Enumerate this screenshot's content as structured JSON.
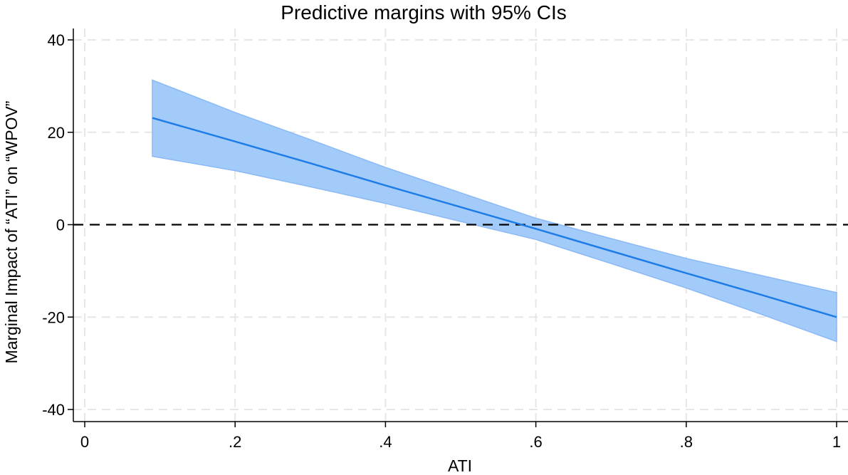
{
  "chart_data": {
    "type": "line",
    "title": "Predictive margins with 95% CIs",
    "xlabel": "ATI",
    "ylabel": "Marginal Impact of “ATI” on “WPOV”",
    "xlim": [
      0,
      1
    ],
    "ylim": [
      -40,
      40
    ],
    "x_ticks": [
      {
        "value": 0,
        "label": "0"
      },
      {
        "value": 0.2,
        "label": ".2"
      },
      {
        "value": 0.4,
        "label": ".4"
      },
      {
        "value": 0.6,
        "label": ".6"
      },
      {
        "value": 0.8,
        "label": ".8"
      },
      {
        "value": 1,
        "label": "1"
      }
    ],
    "y_ticks": [
      {
        "value": -40,
        "label": "-40"
      },
      {
        "value": -20,
        "label": "-20"
      },
      {
        "value": 0,
        "label": "0"
      },
      {
        "value": 20,
        "label": "20"
      },
      {
        "value": 40,
        "label": "40"
      }
    ],
    "grid": true,
    "reference_line": {
      "y": 0,
      "style": "dashed"
    },
    "series": [
      {
        "x": [
          0.09,
          0.2,
          0.3,
          0.4,
          0.5,
          0.6,
          0.7,
          0.8,
          0.9,
          1.0
        ],
        "y": [
          23.1,
          18.0,
          13.3,
          8.5,
          3.8,
          -0.9,
          -5.7,
          -10.5,
          -15.2,
          -20.0
        ],
        "ci_lower": [
          14.8,
          11.7,
          8.2,
          4.6,
          0.7,
          -3.2,
          -8.4,
          -13.7,
          -19.4,
          -25.3
        ],
        "ci_upper": [
          31.3,
          24.3,
          18.4,
          12.4,
          6.9,
          1.4,
          -3.0,
          -7.3,
          -11.0,
          -14.7
        ]
      }
    ],
    "colors": {
      "line": "#1e7ce6",
      "band": "#a3cbfa",
      "band_edge": "#8ab9f5",
      "grid": "#e6e6e6",
      "axis": "#000000",
      "reference": "#000000"
    }
  }
}
